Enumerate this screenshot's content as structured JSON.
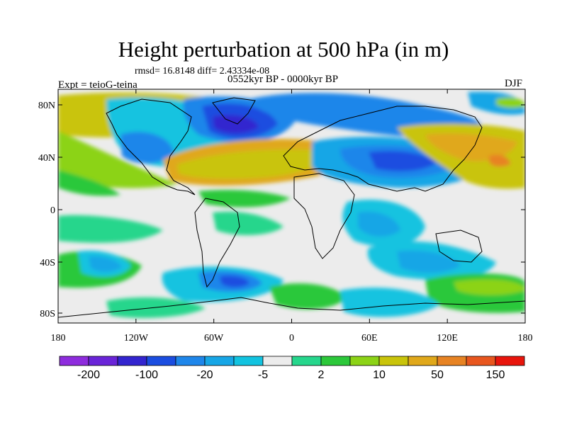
{
  "title": "Height perturbation at 500 hPa (in m)",
  "stats": "rmsd= 16.8148 diff= 2.43334e-08",
  "experiment": "Expt = teioG-teina",
  "period": "0552kyr BP - 0000kyr BP",
  "season": "DJF",
  "lat_ticks": [
    "80N",
    "40N",
    "0",
    "40S",
    "80S"
  ],
  "lon_ticks": [
    "180",
    "120W",
    "60W",
    "0",
    "60E",
    "120E",
    "180"
  ],
  "colorbar": {
    "labels": [
      "-200",
      "-100",
      "-20",
      "-5",
      "2",
      "10",
      "50",
      "150"
    ],
    "colors": [
      "#8e2cdd",
      "#6a24d8",
      "#3325cf",
      "#1b4de0",
      "#1e86ea",
      "#17a6e6",
      "#12c3e0",
      "#ececec",
      "#26d68c",
      "#2cc83a",
      "#8cd316",
      "#c9c40a",
      "#e0a81a",
      "#e78323",
      "#e8561e",
      "#e8150c"
    ]
  },
  "palette": {
    "gray": "#ececec",
    "lightblue": "#12c3e0",
    "blue1": "#17a6e6",
    "blue2": "#1e86ea",
    "blue3": "#1b4de0",
    "blue4": "#3325cf",
    "teal": "#26d68c",
    "green": "#2cc83a",
    "yellowgreen": "#8cd316",
    "olive": "#c9c40a",
    "orange": "#e0a81a",
    "darkorange": "#e78323"
  }
}
